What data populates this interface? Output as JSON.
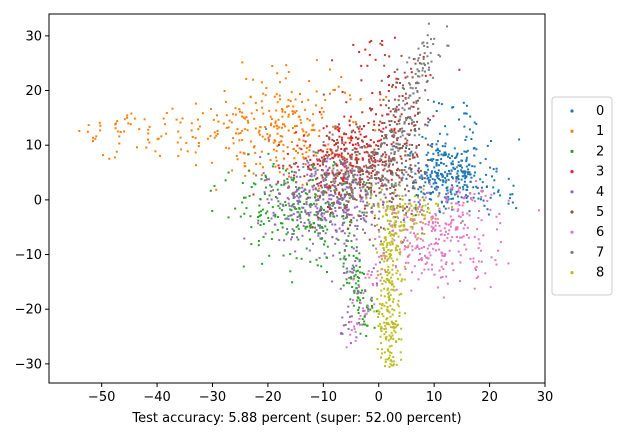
{
  "chart_data": {
    "type": "scatter",
    "title": "",
    "xlabel": "Test accuracy: 5.88 percent (super: 52.00 percent)",
    "ylabel": "",
    "xlim": [
      -59.5,
      30
    ],
    "ylim": [
      -33.5,
      34
    ],
    "xticks": [
      -50,
      -40,
      -30,
      -20,
      -10,
      0,
      10,
      20,
      30
    ],
    "yticks": [
      -30,
      -20,
      -10,
      0,
      10,
      20,
      30
    ],
    "grid": false,
    "legend_position": "right, outside plot",
    "series": [
      {
        "name": "0",
        "color": "#1f77b4",
        "center": [
          12,
          6
        ],
        "spread": [
          4,
          5
        ],
        "extent": "x 3 to 26, y -4 to 19"
      },
      {
        "name": "1",
        "color": "#ff7f0e",
        "center": [
          -18,
          12
        ],
        "spread": [
          10,
          5
        ],
        "extent": "x -56 to 5, y 0 to 26"
      },
      {
        "name": "2",
        "color": "#2ca02c",
        "center": [
          -13,
          -3
        ],
        "spread": [
          6,
          6
        ],
        "extent": "x -26 to 0, y -29 to 5"
      },
      {
        "name": "3",
        "color": "#d62728",
        "center": [
          -6,
          8
        ],
        "spread": [
          6,
          5
        ],
        "extent": "x -32 to 12, y -5 to 30"
      },
      {
        "name": "4",
        "color": "#9467bd",
        "center": [
          -9,
          -1
        ],
        "spread": [
          6,
          5
        ],
        "extent": "x -24 to 8, y -29 to 15"
      },
      {
        "name": "5",
        "color": "#8c564b",
        "center": [
          0,
          6
        ],
        "spread": [
          5,
          5
        ],
        "extent": "x -15 to 10, y -5 to 30"
      },
      {
        "name": "6",
        "color": "#e377c2",
        "center": [
          9,
          -7
        ],
        "spread": [
          6,
          5
        ],
        "extent": "x -6 to 22, y -29 to 5"
      },
      {
        "name": "7",
        "color": "#7f7f7f",
        "center": [
          0,
          5
        ],
        "spread": [
          7,
          6
        ],
        "extent": "x -20 to 12, y -5 to 31"
      },
      {
        "name": "8",
        "color": "#bcbd22",
        "center": [
          3,
          -14
        ],
        "spread": [
          3,
          9
        ],
        "extent": "x -2 to 10, y -30 to 3"
      }
    ]
  }
}
